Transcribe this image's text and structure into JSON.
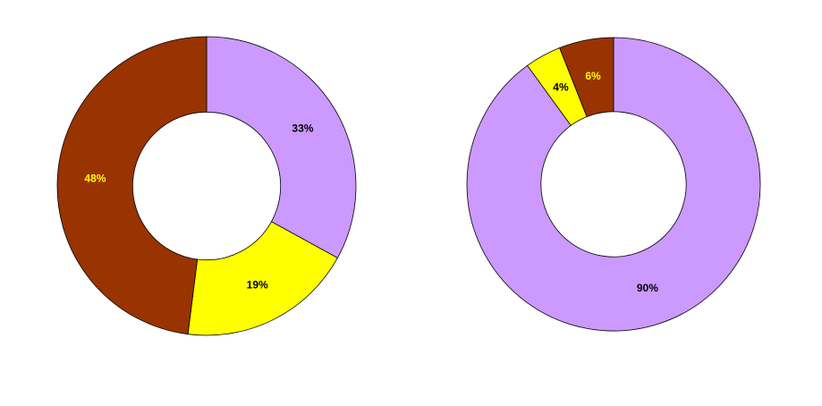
{
  "chart_data": [
    {
      "type": "pie",
      "values": [
        33,
        19,
        48
      ],
      "value_labels": [
        "33%",
        "19%",
        "48%"
      ],
      "colors": [
        "#cc99ff",
        "#ffff00",
        "#993300"
      ],
      "label_colors": [
        "#000000",
        "#000000",
        "#ffff00"
      ]
    },
    {
      "type": "pie",
      "values": [
        90,
        4,
        6
      ],
      "value_labels": [
        "90%",
        "4%",
        "6%"
      ],
      "colors": [
        "#cc99ff",
        "#ffff00",
        "#993300"
      ],
      "label_colors": [
        "#000000",
        "#000000",
        "#ffff00"
      ]
    }
  ]
}
